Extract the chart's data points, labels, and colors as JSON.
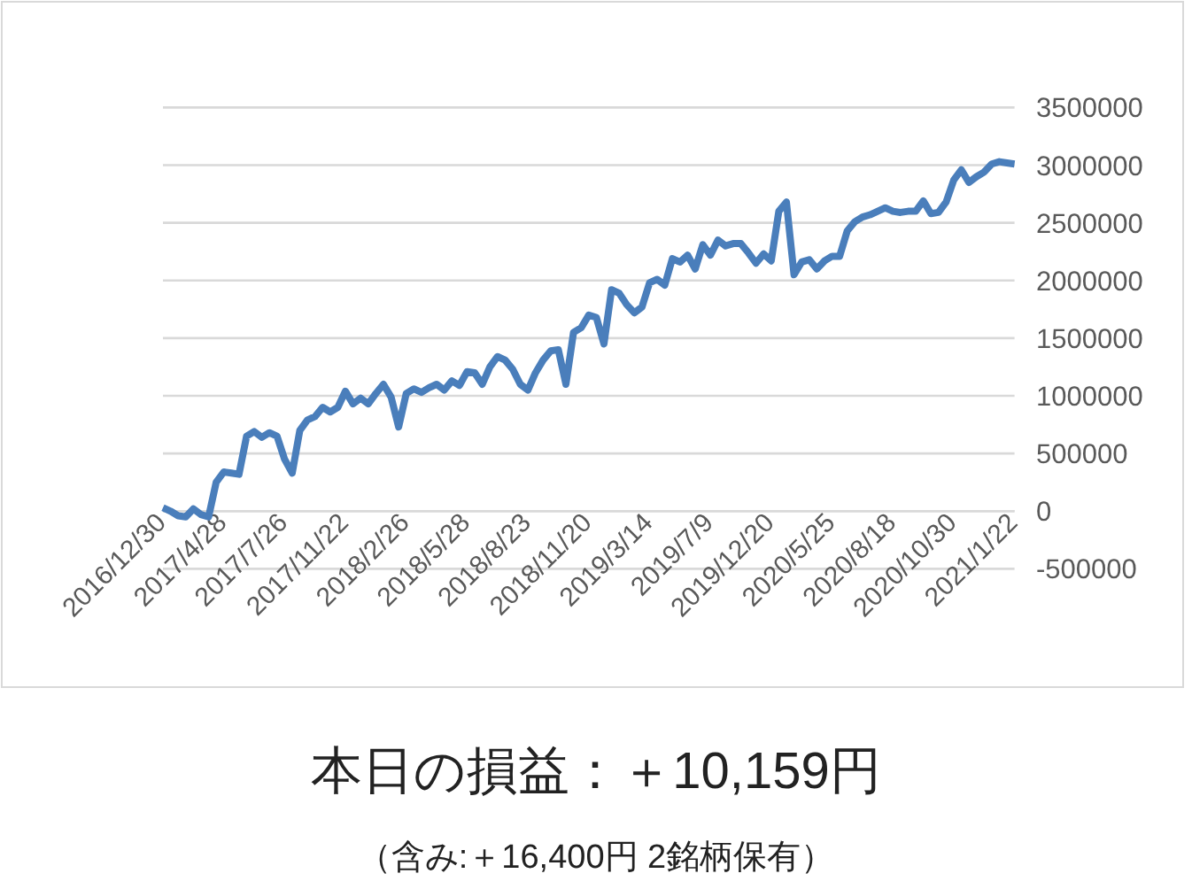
{
  "chart_data": {
    "type": "line",
    "title": "本日の損益：＋10,159円",
    "annotations": [
      "（含み:＋16,400円 2銘柄保有）"
    ],
    "categories": [
      "2016/12/30",
      null,
      null,
      null,
      null,
      null,
      null,
      null,
      "2017/4/28",
      null,
      null,
      null,
      null,
      null,
      null,
      null,
      "2017/7/26",
      null,
      null,
      null,
      null,
      null,
      null,
      null,
      "2017/11/22",
      null,
      null,
      null,
      null,
      null,
      null,
      null,
      "2018/2/26",
      null,
      null,
      null,
      null,
      null,
      null,
      null,
      "2018/5/28",
      null,
      null,
      null,
      null,
      null,
      null,
      null,
      "2018/8/23",
      null,
      null,
      null,
      null,
      null,
      null,
      null,
      "2018/11/20",
      null,
      null,
      null,
      null,
      null,
      null,
      null,
      "2019/3/14",
      null,
      null,
      null,
      null,
      null,
      null,
      null,
      "2019/7/9",
      null,
      null,
      null,
      null,
      null,
      null,
      null,
      "2019/12/20",
      null,
      null,
      null,
      null,
      null,
      null,
      null,
      "2020/5/25",
      null,
      null,
      null,
      null,
      null,
      null,
      null,
      "2020/8/18",
      null,
      null,
      null,
      null,
      null,
      null,
      null,
      "2020/10/30",
      null,
      null,
      null,
      null,
      null,
      null,
      null,
      "2021/1/22"
    ],
    "values": [
      30000,
      0,
      -40000,
      -50000,
      20000,
      -30000,
      -50000,
      250000,
      340000,
      330000,
      320000,
      650000,
      690000,
      640000,
      680000,
      650000,
      450000,
      330000,
      700000,
      790000,
      820000,
      900000,
      860000,
      900000,
      1040000,
      930000,
      980000,
      930000,
      1020000,
      1100000,
      990000,
      730000,
      1020000,
      1060000,
      1030000,
      1070000,
      1100000,
      1050000,
      1130000,
      1090000,
      1210000,
      1200000,
      1100000,
      1250000,
      1340000,
      1310000,
      1230000,
      1100000,
      1050000,
      1200000,
      1310000,
      1390000,
      1400000,
      1100000,
      1550000,
      1590000,
      1700000,
      1680000,
      1450000,
      1920000,
      1890000,
      1790000,
      1720000,
      1770000,
      1980000,
      2010000,
      1960000,
      2190000,
      2160000,
      2220000,
      2100000,
      2310000,
      2220000,
      2350000,
      2300000,
      2320000,
      2320000,
      2240000,
      2150000,
      2230000,
      2170000,
      2600000,
      2680000,
      2050000,
      2160000,
      2180000,
      2100000,
      2170000,
      2210000,
      2210000,
      2430000,
      2510000,
      2550000,
      2570000,
      2600000,
      2630000,
      2600000,
      2590000,
      2600000,
      2600000,
      2690000,
      2580000,
      2590000,
      2680000,
      2870000,
      2960000,
      2850000,
      2900000,
      2940000,
      3010000,
      3030000,
      3020000,
      3010000
    ],
    "color": "#4a7ebb",
    "ylim": [
      -500000,
      3500000
    ],
    "yticks": [
      -500000,
      0,
      500000,
      1000000,
      1500000,
      2000000,
      2500000,
      3000000,
      3500000
    ],
    "grid": "y",
    "line_style": "solid",
    "marker": "none"
  }
}
